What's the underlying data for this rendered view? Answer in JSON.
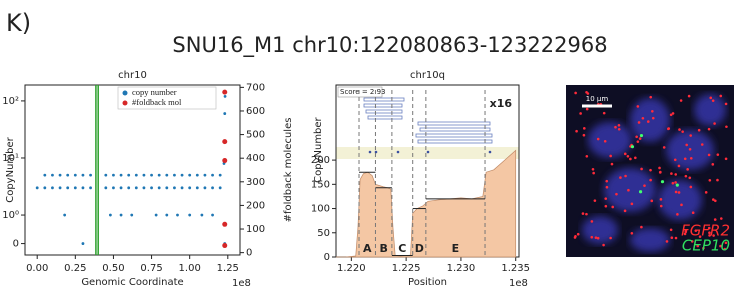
{
  "panel_label": "K)",
  "title": "SNU16_M1 chr10:122080863-123222968",
  "chart_data": [
    {
      "type": "scatter",
      "title": "chr10",
      "x_label": "Genomic Coordinate",
      "x_offset_label": "1e8",
      "y_label": "CopyNumber",
      "y2_label": "#foldback molecules",
      "yscale": "symlog",
      "legend": "upper right",
      "xlim": [
        -0.08,
        1.33
      ],
      "xticks": [
        {
          "value": 0,
          "label": "0.00"
        },
        {
          "value": 0.25,
          "label": "0.25"
        },
        {
          "value": 0.5,
          "label": "0.50"
        },
        {
          "value": 0.75,
          "label": "0.75"
        },
        {
          "value": 1,
          "label": "1.00"
        },
        {
          "value": 1.25,
          "label": "1.25"
        }
      ],
      "ylim": [
        -0.4,
        190
      ],
      "yticks": [
        0,
        {
          "value": 1,
          "label": "10⁰"
        },
        {
          "value": 10,
          "label": "10¹"
        },
        {
          "value": 100,
          "label": "10²"
        }
      ],
      "y2lim": [
        -10,
        710
      ],
      "y2ticks": [
        0,
        100,
        200,
        300,
        400,
        500,
        600,
        700
      ],
      "vlines": {
        "x": [
          0.385,
          0.4
        ],
        "color": "#2ca02c"
      },
      "series": [
        {
          "name": "copy number",
          "color": "#1f77b4",
          "x": [
            0.05,
            0.1,
            0.15,
            0.2,
            0.25,
            0.3,
            0.35,
            0.45,
            0.5,
            0.55,
            0.6,
            0.65,
            0.7,
            0.75,
            0.8,
            0.85,
            0.9,
            0.95,
            1.0,
            1.05,
            1.1,
            1.15,
            1.2,
            0,
            0.05,
            0.1,
            0.15,
            0.2,
            0.25,
            0.3,
            0.35,
            0.45,
            0.5,
            0.55,
            0.6,
            0.65,
            0.7,
            0.75,
            0.8,
            0.85,
            0.9,
            0.95,
            1.0,
            1.05,
            1.1,
            1.15,
            1.2,
            0.18,
            0.48,
            0.55,
            0.62,
            0.78,
            0.85,
            0.92,
            1.0,
            1.08,
            1.15,
            0.3,
            1.23,
            1.225,
            1.228,
            1.23,
            1.232
          ],
          "values": [
            5,
            5,
            5,
            5,
            5,
            5,
            5,
            5,
            5,
            5,
            5,
            5,
            5,
            5,
            5,
            5,
            5,
            5,
            5,
            5,
            5,
            5,
            5,
            3,
            3,
            3,
            3,
            3,
            3,
            3,
            3,
            3,
            3,
            3,
            3,
            3,
            3,
            3,
            3,
            3,
            3,
            3,
            3,
            3,
            3,
            3,
            3,
            1,
            1,
            1,
            1,
            1,
            1,
            1,
            1,
            1,
            1,
            0,
            0,
            8,
            20,
            60,
            120
          ]
        },
        {
          "name": "#foldback mol",
          "color": "#d62728",
          "axis": "y2",
          "x": [
            1.23,
            1.23,
            1.23,
            1.23,
            1.23
          ],
          "values": [
            680,
            470,
            390,
            120,
            30
          ]
        }
      ]
    },
    {
      "type": "area",
      "title": "chr10q",
      "x_label": "Position",
      "x_offset_label": "1e8",
      "y_label": "CopyNumber",
      "annotations": [
        "Score = 2.93",
        "x16"
      ],
      "xlim": [
        1.2186,
        1.2353
      ],
      "xticks": [
        {
          "value": 1.22,
          "label": "1.220"
        },
        {
          "value": 1.225,
          "label": "1.225"
        },
        {
          "value": 1.23,
          "label": "1.230"
        },
        {
          "value": 1.235,
          "label": "1.235"
        }
      ],
      "ylim": [
        0,
        355
      ],
      "yticks": [
        0,
        50,
        100,
        150,
        200
      ],
      "x": [
        1.2186,
        1.2195,
        1.2204,
        1.2206,
        1.2208,
        1.2211,
        1.2215,
        1.2219,
        1.2222,
        1.2225,
        1.2229,
        1.2233,
        1.2236,
        1.2238,
        1.224,
        1.2245,
        1.225,
        1.2254,
        1.2256,
        1.226,
        1.2265,
        1.227,
        1.228,
        1.229,
        1.23,
        1.231,
        1.232,
        1.2323,
        1.233,
        1.234,
        1.235
      ],
      "series": [
        {
          "color": "#f4c7a4",
          "values": [
            0,
            0,
            2,
            60,
            160,
            172,
            175,
            168,
            150,
            148,
            145,
            143,
            140,
            60,
            3,
            2,
            3,
            4,
            90,
            100,
            105,
            115,
            118,
            120,
            122,
            120,
            125,
            175,
            180,
            200,
            220
          ]
        }
      ],
      "segments": [
        {
          "label": "A",
          "start": 1.2207,
          "end": 1.2222,
          "value": 175
        },
        {
          "label": "B",
          "start": 1.2222,
          "end": 1.2237,
          "value": 143
        },
        {
          "label": "C",
          "start": 1.2237,
          "end": 1.2256,
          "value": 3
        },
        {
          "label": "D",
          "start": 1.2256,
          "end": 1.2268,
          "value": 100
        },
        {
          "label": "E",
          "start": 1.2268,
          "end": 1.2322,
          "value": 120
        }
      ]
    }
  ],
  "image": {
    "scale_bar": "10 µm",
    "labels": [
      {
        "text": "FGFR2",
        "color": "#ff3030"
      },
      {
        "text": "CEP10",
        "color": "#30e060"
      }
    ]
  }
}
